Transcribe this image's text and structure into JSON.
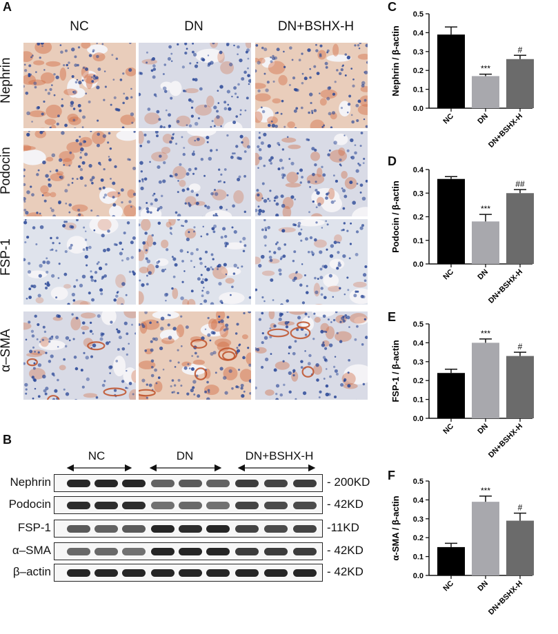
{
  "panel_letters": {
    "a": "A",
    "b": "B",
    "c": "C",
    "d": "D",
    "e": "E",
    "f": "F"
  },
  "ihc": {
    "columns": [
      "NC",
      "DN",
      "DN+BSHX-H"
    ],
    "rows": [
      "Nephrin",
      "Podocin",
      "FSP-1",
      "α–SMA"
    ]
  },
  "blot": {
    "groups": [
      "NC",
      "DN",
      "DN+BSHX-H"
    ],
    "rows": [
      {
        "label": "Nephrin",
        "size": "- 200KD",
        "intensity": [
          0.95,
          0.95,
          0.95,
          0.55,
          0.6,
          0.55,
          0.8,
          0.75,
          0.8
        ]
      },
      {
        "label": "Podocin",
        "size": "- 42KD",
        "intensity": [
          0.9,
          0.9,
          0.9,
          0.45,
          0.5,
          0.45,
          0.75,
          0.7,
          0.7
        ]
      },
      {
        "label": "FSP-1",
        "size": "-11KD",
        "intensity": [
          0.6,
          0.55,
          0.6,
          0.95,
          0.9,
          0.95,
          0.75,
          0.7,
          0.75
        ]
      },
      {
        "label": "α–SMA",
        "size": "- 42KD",
        "intensity": [
          0.5,
          0.5,
          0.45,
          0.95,
          0.95,
          0.95,
          0.8,
          0.8,
          0.8
        ]
      },
      {
        "label": "β–actin",
        "size": "- 42KD",
        "intensity": [
          0.95,
          0.95,
          0.95,
          0.95,
          0.95,
          0.95,
          0.95,
          0.95,
          0.95
        ]
      }
    ]
  },
  "chart_data": [
    {
      "panel": "C",
      "type": "bar",
      "categories": [
        "NC",
        "DN",
        "DN+BSHX-H"
      ],
      "values": [
        0.39,
        0.17,
        0.26
      ],
      "errors": [
        0.04,
        0.01,
        0.02
      ],
      "annotations": [
        "",
        "***",
        "#"
      ],
      "ylabel": "Nephrin / β-actin",
      "ylim": [
        0,
        0.5
      ],
      "yticks": [
        "0.0",
        "0.1",
        "0.2",
        "0.3",
        "0.4",
        "0.5"
      ],
      "colors": [
        "#000000",
        "#a8a8ad",
        "#6b6b6b"
      ]
    },
    {
      "panel": "D",
      "type": "bar",
      "categories": [
        "NC",
        "DN",
        "DN+BSHX-H"
      ],
      "values": [
        0.36,
        0.18,
        0.3
      ],
      "errors": [
        0.01,
        0.03,
        0.015
      ],
      "annotations": [
        "",
        "***",
        "##"
      ],
      "ylabel": "Podocin / β-actin",
      "ylim": [
        0,
        0.4
      ],
      "yticks": [
        "0.0",
        "0.1",
        "0.2",
        "0.3",
        "0.4"
      ],
      "colors": [
        "#000000",
        "#a8a8ad",
        "#6b6b6b"
      ]
    },
    {
      "panel": "E",
      "type": "bar",
      "categories": [
        "NC",
        "DN",
        "DN+BSHX-H"
      ],
      "values": [
        0.24,
        0.4,
        0.33
      ],
      "errors": [
        0.02,
        0.02,
        0.02
      ],
      "annotations": [
        "",
        "***",
        "#"
      ],
      "ylabel": "FSP-1 / β-actin",
      "ylim": [
        0,
        0.5
      ],
      "yticks": [
        "0.0",
        "0.1",
        "0.2",
        "0.3",
        "0.4",
        "0.5"
      ],
      "colors": [
        "#000000",
        "#a8a8ad",
        "#6b6b6b"
      ]
    },
    {
      "panel": "F",
      "type": "bar",
      "categories": [
        "NC",
        "DN",
        "DN+BSHX-H"
      ],
      "values": [
        0.15,
        0.39,
        0.29
      ],
      "errors": [
        0.02,
        0.03,
        0.04
      ],
      "annotations": [
        "",
        "***",
        "#"
      ],
      "ylabel": "α-SMA / β-actin",
      "ylim": [
        0,
        0.5
      ],
      "yticks": [
        "0.0",
        "0.1",
        "0.2",
        "0.3",
        "0.4",
        "0.5"
      ],
      "colors": [
        "#000000",
        "#a8a8ad",
        "#6b6b6b"
      ]
    }
  ]
}
